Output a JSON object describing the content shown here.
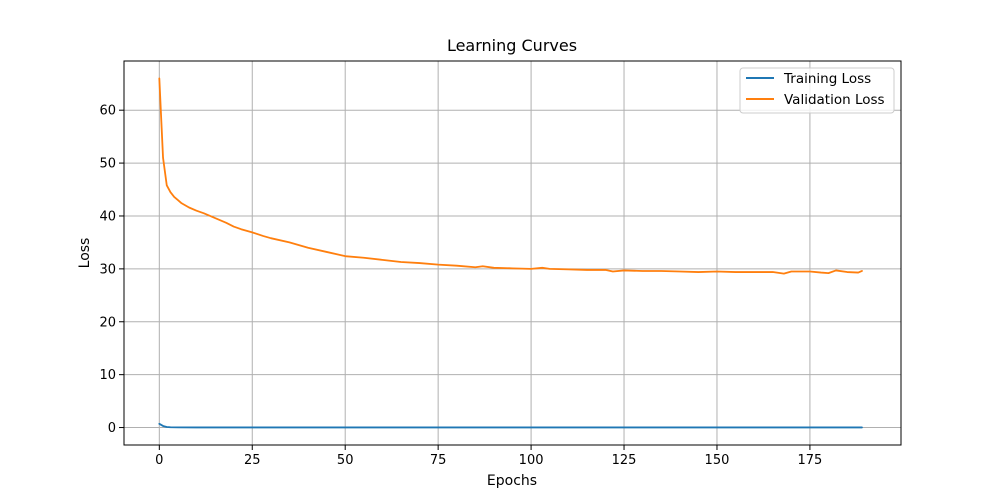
{
  "chart_data": {
    "type": "line",
    "title": "Learning Curves",
    "xlabel": "Epochs",
    "ylabel": "Loss",
    "xlim": [
      -9.5,
      199.5
    ],
    "ylim": [
      -3.3,
      69.3
    ],
    "xticks": [
      0,
      25,
      50,
      75,
      100,
      125,
      150,
      175
    ],
    "yticks": [
      0,
      10,
      20,
      30,
      40,
      50,
      60
    ],
    "grid": true,
    "legend_position": "top-right",
    "series": [
      {
        "name": "Training Loss",
        "color": "#1f77b4",
        "x": [
          0,
          1,
          2,
          3,
          5,
          10,
          20,
          50,
          100,
          150,
          189
        ],
        "y": [
          0.7,
          0.3,
          0.1,
          0.05,
          0.03,
          0.02,
          0.02,
          0.02,
          0.02,
          0.02,
          0.02
        ]
      },
      {
        "name": "Validation Loss",
        "color": "#ff7f0e",
        "x": [
          0,
          1,
          2,
          3,
          4,
          5,
          6,
          8,
          10,
          12,
          15,
          18,
          20,
          22,
          25,
          28,
          30,
          35,
          40,
          45,
          50,
          55,
          60,
          65,
          70,
          75,
          80,
          85,
          87,
          90,
          95,
          100,
          103,
          105,
          110,
          115,
          120,
          122,
          125,
          130,
          135,
          140,
          145,
          150,
          155,
          160,
          165,
          168,
          170,
          175,
          178,
          180,
          182,
          185,
          188,
          189
        ],
        "y": [
          66,
          51,
          45.8,
          44.5,
          43.6,
          43,
          42.4,
          41.6,
          41,
          40.5,
          39.6,
          38.7,
          38,
          37.5,
          36.9,
          36.2,
          35.8,
          35,
          34,
          33.2,
          32.4,
          32.1,
          31.7,
          31.3,
          31.1,
          30.8,
          30.6,
          30.3,
          30.5,
          30.2,
          30.1,
          30.0,
          30.2,
          30.0,
          29.9,
          29.8,
          29.8,
          29.5,
          29.7,
          29.6,
          29.6,
          29.5,
          29.4,
          29.5,
          29.4,
          29.4,
          29.4,
          29.1,
          29.5,
          29.5,
          29.3,
          29.2,
          29.7,
          29.4,
          29.3,
          29.6
        ]
      }
    ]
  }
}
